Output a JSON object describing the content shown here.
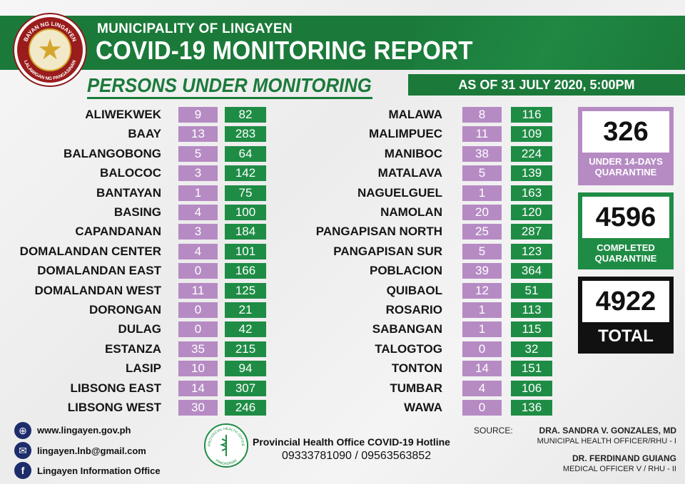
{
  "header": {
    "seal_top_text": "BAYAN NG LINGAYEN",
    "seal_bottom_text": "LALAWIGAN NG PANGASINAN",
    "municipality": "MUNICIPALITY OF LINGAYEN",
    "title": "COVID-19 MONITORING REPORT",
    "subtitle": "PERSONS UNDER MONITORING",
    "as_of": "AS OF 31 JULY 2020, 5:00PM"
  },
  "colors": {
    "green": "#1f8c45",
    "purple": "#b68bc4",
    "black": "#111111"
  },
  "left_column": [
    {
      "name": "ALIWEKWEK",
      "a": "9",
      "b": "82"
    },
    {
      "name": "BAAY",
      "a": "13",
      "b": "283"
    },
    {
      "name": "BALANGOBONG",
      "a": "5",
      "b": "64"
    },
    {
      "name": "BALOCOC",
      "a": "3",
      "b": "142"
    },
    {
      "name": "BANTAYAN",
      "a": "1",
      "b": "75"
    },
    {
      "name": "BASING",
      "a": "4",
      "b": "100"
    },
    {
      "name": "CAPANDANAN",
      "a": "3",
      "b": "184"
    },
    {
      "name": "DOMALANDAN CENTER",
      "a": "4",
      "b": "101"
    },
    {
      "name": "DOMALANDAN EAST",
      "a": "0",
      "b": "166"
    },
    {
      "name": "DOMALANDAN WEST",
      "a": "11",
      "b": "125"
    },
    {
      "name": "DORONGAN",
      "a": "0",
      "b": "21"
    },
    {
      "name": "DULAG",
      "a": "0",
      "b": "42"
    },
    {
      "name": "ESTANZA",
      "a": "35",
      "b": "215"
    },
    {
      "name": "LASIP",
      "a": "10",
      "b": "94"
    },
    {
      "name": "LIBSONG EAST",
      "a": "14",
      "b": "307"
    },
    {
      "name": "LIBSONG WEST",
      "a": "30",
      "b": "246"
    }
  ],
  "right_column": [
    {
      "name": "MALAWA",
      "a": "8",
      "b": "116"
    },
    {
      "name": "MALIMPUEC",
      "a": "11",
      "b": "109"
    },
    {
      "name": "MANIBOC",
      "a": "38",
      "b": "224"
    },
    {
      "name": "MATALAVA",
      "a": "5",
      "b": "139"
    },
    {
      "name": "NAGUELGUEL",
      "a": "1",
      "b": "163"
    },
    {
      "name": "NAMOLAN",
      "a": "20",
      "b": "120"
    },
    {
      "name": "PANGAPISAN NORTH",
      "a": "25",
      "b": "287"
    },
    {
      "name": "PANGAPISAN SUR",
      "a": "5",
      "b": "123"
    },
    {
      "name": "POBLACION",
      "a": "39",
      "b": "364"
    },
    {
      "name": "QUIBAOL",
      "a": "12",
      "b": "51"
    },
    {
      "name": "ROSARIO",
      "a": "1",
      "b": "113"
    },
    {
      "name": "SABANGAN",
      "a": "1",
      "b": "115"
    },
    {
      "name": "TALOGTOG",
      "a": "0",
      "b": "32"
    },
    {
      "name": "TONTON",
      "a": "14",
      "b": "151"
    },
    {
      "name": "TUMBAR",
      "a": "4",
      "b": "106"
    },
    {
      "name": "WAWA",
      "a": "0",
      "b": "136"
    }
  ],
  "summary": {
    "quarantine_value": "326",
    "quarantine_label_1": "UNDER 14-DAYS",
    "quarantine_label_2": "QUARANTINE",
    "completed_value": "4596",
    "completed_label_1": "COMPLETED",
    "completed_label_2": "QUARANTINE",
    "total_value": "4922",
    "total_label": "TOTAL"
  },
  "footer": {
    "website": "www.lingayen.gov.ph",
    "email": "lingayen.lnb@gmail.com",
    "facebook": "Lingayen Information Office",
    "hotline_title": "Provincial Health Office COVID-19 Hotline",
    "hotline_numbers": "09333781090 / 09563563852",
    "phos_seal_text": "PROVINCIAL HEALTH OFFICE",
    "phos_seal_bottom": "PANGASINAN",
    "source_label": "SOURCE:",
    "source1_name": "DRA. SANDRA V. GONZALES, MD",
    "source1_title": "MUNICIPAL HEALTH OFFICER/RHU - I",
    "source2_name": "DR. FERDINAND GUIANG",
    "source2_title": "MEDICAL OFFICER V / RHU - II"
  },
  "icons": {
    "globe": "globe-icon",
    "mail": "mail-icon",
    "facebook": "facebook-icon",
    "seal": "municipal-seal-icon",
    "pho": "pho-seal-icon"
  }
}
